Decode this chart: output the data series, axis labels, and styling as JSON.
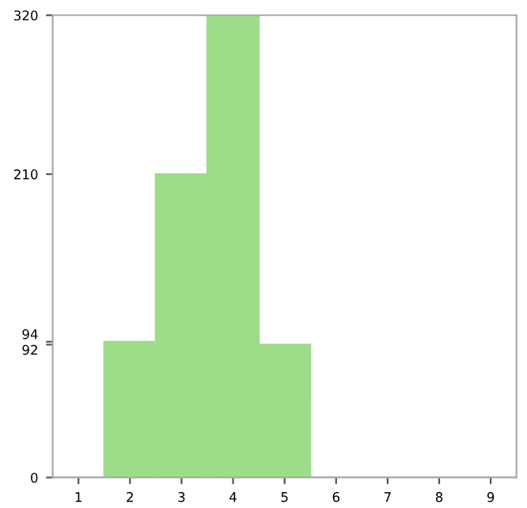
{
  "chart_data": {
    "type": "bar",
    "categories": [
      "1",
      "2",
      "3",
      "4",
      "5",
      "6",
      "7",
      "8",
      "9"
    ],
    "values": [
      0,
      94,
      210,
      320,
      92,
      0,
      0,
      0,
      0
    ],
    "color": "#9ddc88",
    "ylim": [
      0,
      320
    ],
    "yticks": [
      0,
      92,
      94,
      210,
      320
    ],
    "grid": false
  }
}
